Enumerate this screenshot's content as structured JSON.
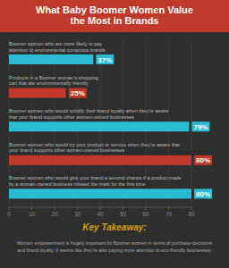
{
  "chart_data": {
    "type": "bar",
    "orientation": "horizontal",
    "title": "What Baby Boomer Women Value\nthe Most in Brands",
    "categories": [
      "Boomer women who are more likely to pay\nattention to environmental conscious brands",
      "Products in a Boomer woman's shopping\ncart that are environmentally friendly",
      "Boomer women who would solidify their brand loyalty when they're aware\nthat your brand supports other women-owned businesses",
      "Boomer women who would try your product or service when they're aware that\nyour brand supports other women-owned businesses",
      "Boomer women who would give your brand a second chance if a product made\nby a woman-owned business missed the mark for the first time"
    ],
    "values": [
      37,
      25,
      79,
      80,
      80
    ],
    "value_labels": [
      "37%",
      "25%",
      "79%",
      "80%",
      "80%"
    ],
    "colors": [
      "#2bbcd4",
      "#c0392b",
      "#2bbcd4",
      "#c0392b",
      "#2bbcd4"
    ],
    "data_labels": true,
    "xlim": [
      0,
      80
    ],
    "xticks": [
      0,
      10,
      20,
      30,
      40,
      50,
      60,
      70,
      80
    ],
    "grid": true,
    "annotations": [
      "Key Takeaway:",
      "Women empowerment is hugely important for Boomer women in terms of purchase decisions\nand brand loyalty. It seems like they're also paying more attention to eco-friendly businesses."
    ]
  }
}
